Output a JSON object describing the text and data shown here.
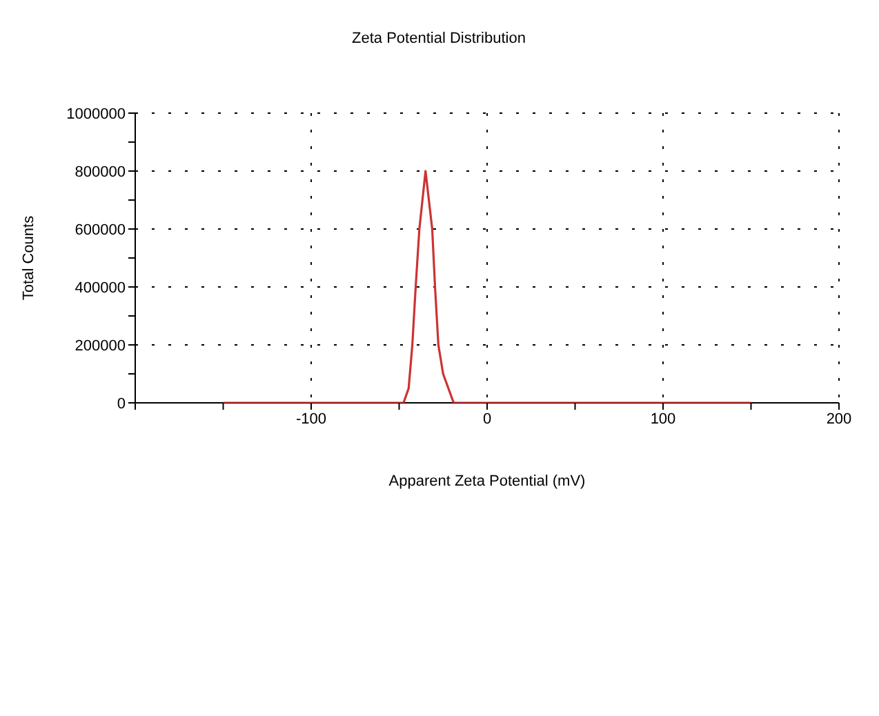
{
  "chart_data": {
    "type": "line",
    "title": "Zeta Potential Distribution",
    "xlabel": "Apparent Zeta Potential (mV)",
    "ylabel": "Total Counts",
    "x": [
      -150,
      -100,
      -50,
      -47.5,
      -44.6,
      -42.5,
      -40.6,
      -38.5,
      -35,
      -31.2,
      -29.6,
      -27.7,
      -25,
      -19,
      0,
      50,
      100,
      150
    ],
    "series": [
      {
        "color": "#cc3333",
        "values": [
          0,
          0,
          0,
          0,
          50000,
          200000,
          400000,
          600000,
          800000,
          600000,
          400000,
          200000,
          100000,
          0,
          0,
          0,
          0,
          0
        ]
      }
    ],
    "xlim": [
      -200,
      200
    ],
    "xticks": [
      {
        "value": -200,
        "label": null
      },
      {
        "value": -150,
        "label": null
      },
      -100,
      {
        "value": -50,
        "label": null
      },
      0,
      {
        "value": 50,
        "label": null
      },
      100,
      {
        "value": 150,
        "label": null
      },
      200
    ],
    "ylim": [
      0,
      1000000
    ],
    "yticks": [
      0,
      {
        "value": 100000,
        "label": null
      },
      200000,
      {
        "value": 300000,
        "label": null
      },
      400000,
      {
        "value": 500000,
        "label": null
      },
      600000,
      {
        "value": 700000,
        "label": null
      },
      800000,
      {
        "value": 900000,
        "label": null
      },
      1000000
    ],
    "grid": true,
    "legend": false,
    "marker": "none",
    "line_style": "solid"
  }
}
